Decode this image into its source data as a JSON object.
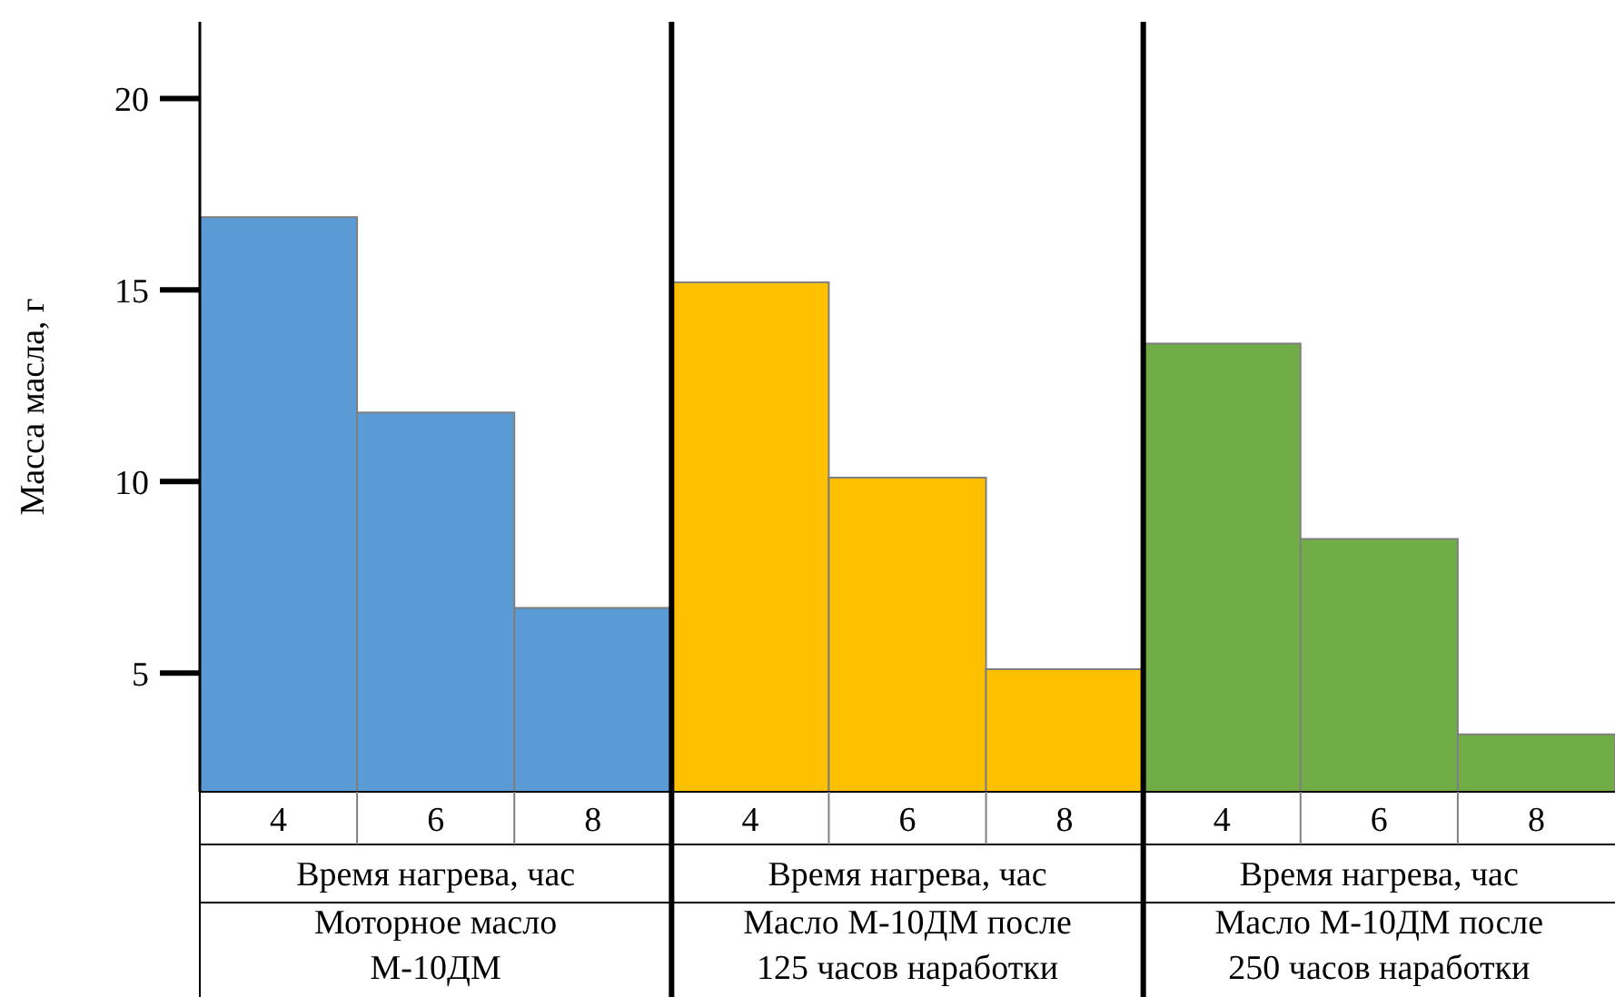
{
  "chart_data": {
    "type": "bar",
    "ylabel": "Масса масла, г",
    "categories": [
      "4",
      "6",
      "8",
      "4",
      "6",
      "8",
      "4",
      "6",
      "8"
    ],
    "values": [
      16.9,
      11.8,
      6.7,
      15.2,
      10.1,
      5.1,
      13.6,
      8.5,
      3.4
    ],
    "colors": [
      "#5b9bd5",
      "#5b9bd5",
      "#5b9bd5",
      "#ffc000",
      "#ffc000",
      "#ffc000",
      "#70ad47",
      "#70ad47",
      "#70ad47"
    ],
    "ylim": [
      1.9,
      22
    ],
    "yticks": [
      5,
      10,
      15,
      20
    ],
    "annotations": [
      "Время нагрева, час",
      "Время нагрева, час",
      "Время нагрева, час",
      "Моторное масло М-10ДМ",
      "Масло М-10ДМ после 125 часов наработки",
      "Масло М-10ДМ после 250 часов наработки"
    ]
  }
}
